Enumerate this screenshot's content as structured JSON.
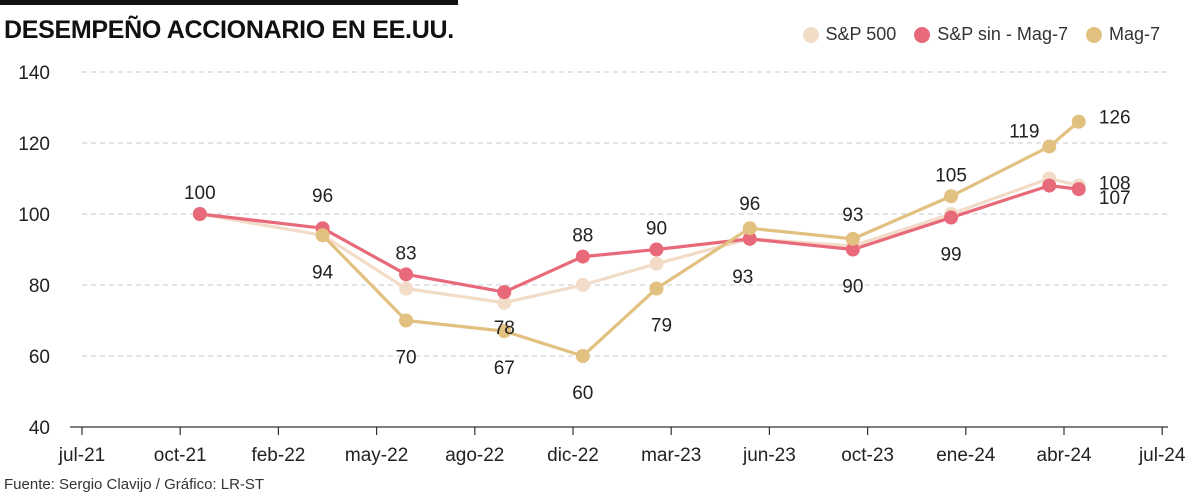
{
  "title": "DESEMPEÑO ACCIONARIO EN EE.UU.",
  "source": "Fuente: Sergio Clavijo / Gráfico: LR-ST",
  "chart_data": {
    "type": "line",
    "title": "DESEMPEÑO ACCIONARIO EN EE.UU.",
    "xlabel": "",
    "ylabel": "",
    "ylim": [
      40,
      140
    ],
    "yticks": [
      40,
      60,
      80,
      100,
      120,
      140
    ],
    "grid": "horizontal dashed",
    "legend_position": "top-right",
    "x_ticks": [
      "jul-21",
      "oct-21",
      "feb-22",
      "may-22",
      "ago-22",
      "dic-22",
      "mar-23",
      "jun-23",
      "oct-23",
      "ene-24",
      "abr-24",
      "jul-24"
    ],
    "x_tick_values": [
      0,
      1,
      2,
      3,
      4,
      5,
      6,
      7,
      8,
      9,
      10,
      11
    ],
    "series": [
      {
        "name": "S&P 500",
        "color": "#f2dcc7",
        "x": [
          1.2,
          2.45,
          3.3,
          4.3,
          5.1,
          5.85,
          6.8,
          7.85,
          8.85,
          9.85,
          10.15
        ],
        "values": [
          100,
          94,
          79,
          75,
          80,
          86,
          93,
          91,
          100,
          110,
          108
        ],
        "labels": [
          "",
          "",
          "",
          "",
          "",
          "",
          "",
          "",
          "",
          "",
          "108"
        ]
      },
      {
        "name": "S&P sin - Mag-7",
        "color": "#e8697a",
        "x": [
          1.2,
          2.45,
          3.3,
          4.3,
          5.1,
          5.85,
          6.8,
          7.85,
          8.85,
          9.85,
          10.15
        ],
        "values": [
          100,
          96,
          83,
          78,
          88,
          90,
          93,
          90,
          99,
          108,
          107
        ],
        "labels": [
          "100",
          "96",
          "83",
          "78",
          "88",
          "90",
          "93",
          "90",
          "99",
          "",
          "107"
        ]
      },
      {
        "name": "Mag-7",
        "color": "#e2c07f",
        "x": [
          2.45,
          3.3,
          4.3,
          5.1,
          5.85,
          6.8,
          7.85,
          8.85,
          9.85,
          10.15
        ],
        "values": [
          94,
          70,
          67,
          60,
          79,
          96,
          93,
          105,
          119,
          126
        ],
        "labels": [
          "94",
          "70",
          "67",
          "60",
          "79",
          "96",
          "93",
          "105",
          "119",
          "126"
        ]
      }
    ]
  }
}
